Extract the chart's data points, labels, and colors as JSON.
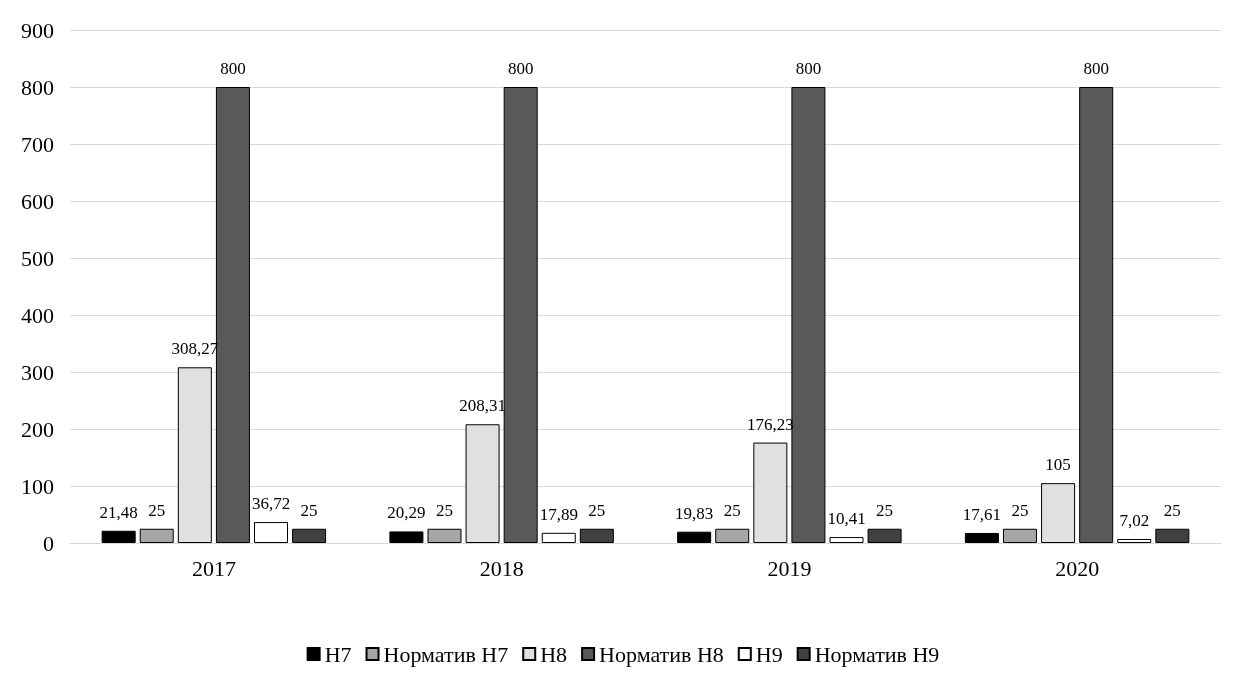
{
  "chart_data": {
    "type": "bar",
    "categories": [
      "2017",
      "2018",
      "2019",
      "2020"
    ],
    "series": [
      {
        "name": "Н7",
        "color": "#000000",
        "values": [
          21.48,
          20.29,
          19.83,
          17.61
        ],
        "value_labels": [
          "21,48",
          "20,29",
          "19,83",
          "17,61"
        ]
      },
      {
        "name": "Норматив Н7",
        "color": "#a6a6a6",
        "values": [
          25,
          25,
          25,
          25
        ],
        "value_labels": [
          "25",
          "25",
          "25",
          "25"
        ]
      },
      {
        "name": "Н8",
        "color": "#e0e0e0",
        "values": [
          308.27,
          208.31,
          176.23,
          105
        ],
        "value_labels": [
          "308,27",
          "208,31",
          "176,23",
          "105"
        ]
      },
      {
        "name": "Норматив Н8",
        "color": "#595959",
        "values": [
          800,
          800,
          800,
          800
        ],
        "value_labels": [
          "800",
          "800",
          "800",
          "800"
        ]
      },
      {
        "name": "Н9",
        "color": "#ffffff",
        "values": [
          36.72,
          17.89,
          10.41,
          7.02
        ],
        "value_labels": [
          "36,72",
          "17,89",
          "10,41",
          "7,02"
        ]
      },
      {
        "name": "Норматив Н9",
        "color": "#404040",
        "values": [
          25,
          25,
          25,
          25
        ],
        "value_labels": [
          "25",
          "25",
          "25",
          "25"
        ]
      }
    ],
    "ylim": [
      0,
      900
    ],
    "yticks": [
      0,
      100,
      200,
      300,
      400,
      500,
      600,
      700,
      800,
      900
    ],
    "grid": "y",
    "legend": "bottom"
  }
}
